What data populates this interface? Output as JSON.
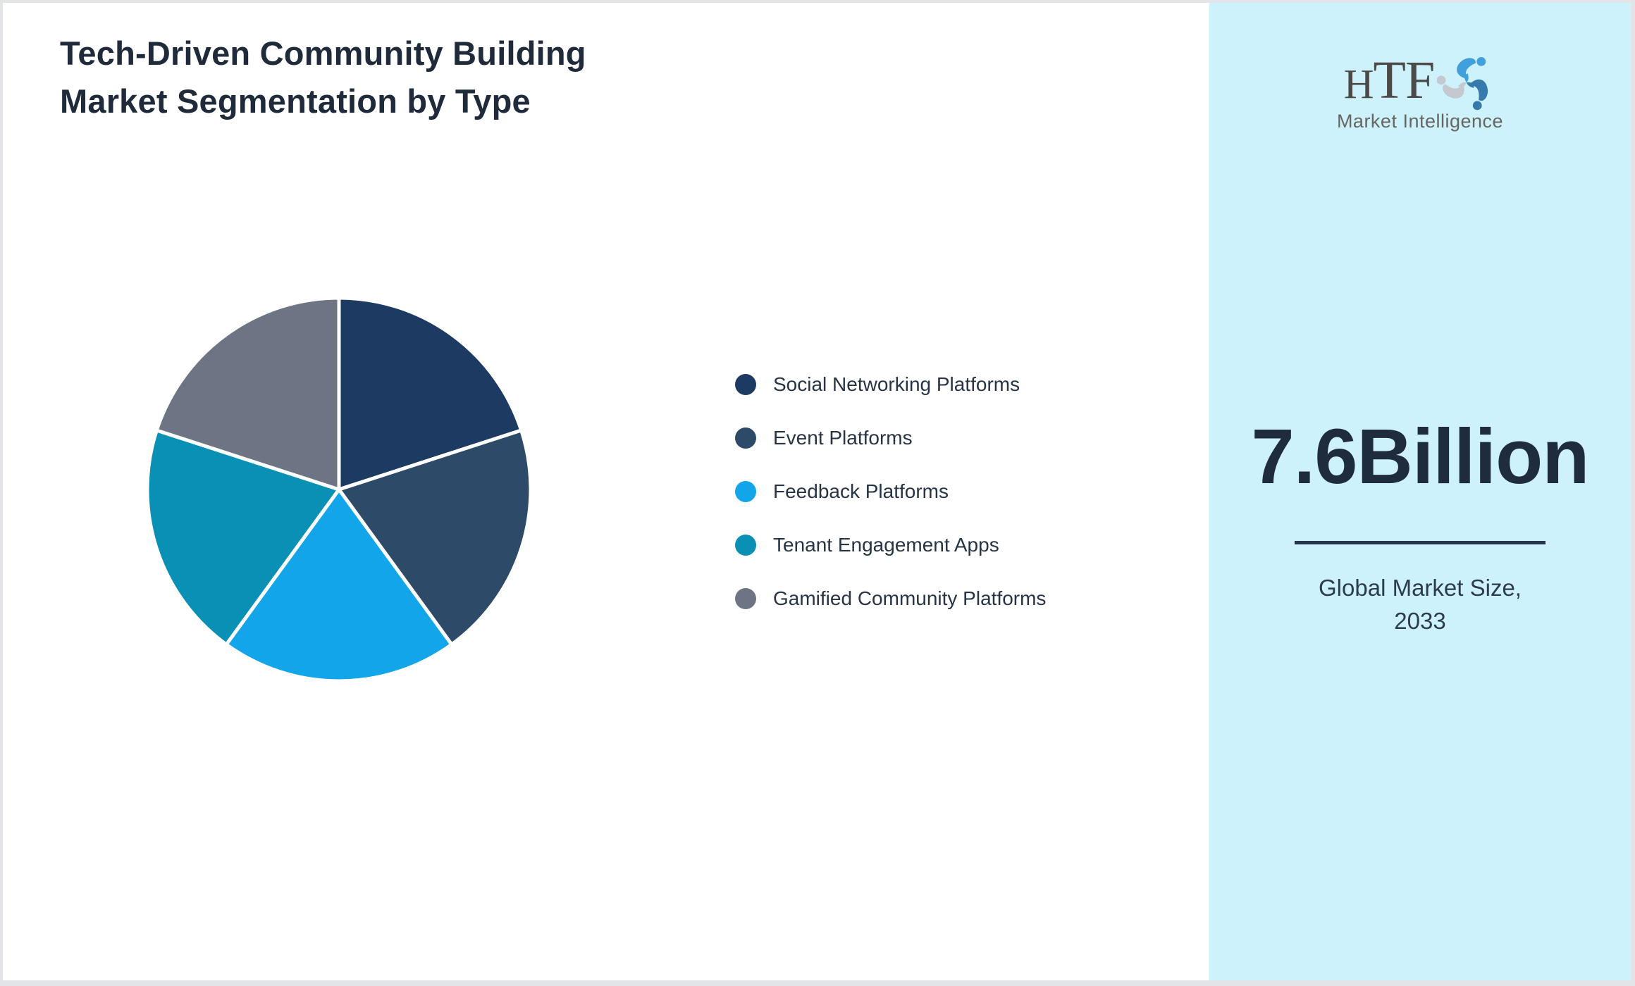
{
  "header": {
    "title_line1": "Tech-Driven Community Building",
    "title_line2": "Market Segmentation by Type"
  },
  "chart_data": {
    "type": "pie",
    "title": "Tech-Driven Community Building Market Segmentation by Type",
    "labels": [
      "Social Networking Platforms",
      "Event Platforms",
      "Feedback Platforms",
      "Tenant Engagement Apps",
      "Gamified Community Platforms"
    ],
    "values": [
      20,
      20,
      20,
      20,
      20
    ],
    "unit": "%",
    "colors": [
      "#1d3a63",
      "#2d4b68",
      "#12a5ea",
      "#0a90b5",
      "#6d7585"
    ],
    "start_angle_deg": 0,
    "direction": "clockwise",
    "legend_position": "right",
    "slice_border_color": "#ffffff"
  },
  "sidebar": {
    "background": "#cdf2fb",
    "logo": {
      "text": "HTF",
      "subtext": "Market Intelligence",
      "swirl_colors": [
        "#3fa0dc",
        "#3579ad",
        "#c3c9cf"
      ]
    },
    "market_size_value": "7.6Billion",
    "caption_line1": "Global Market Size,",
    "caption_line2": "2033"
  }
}
